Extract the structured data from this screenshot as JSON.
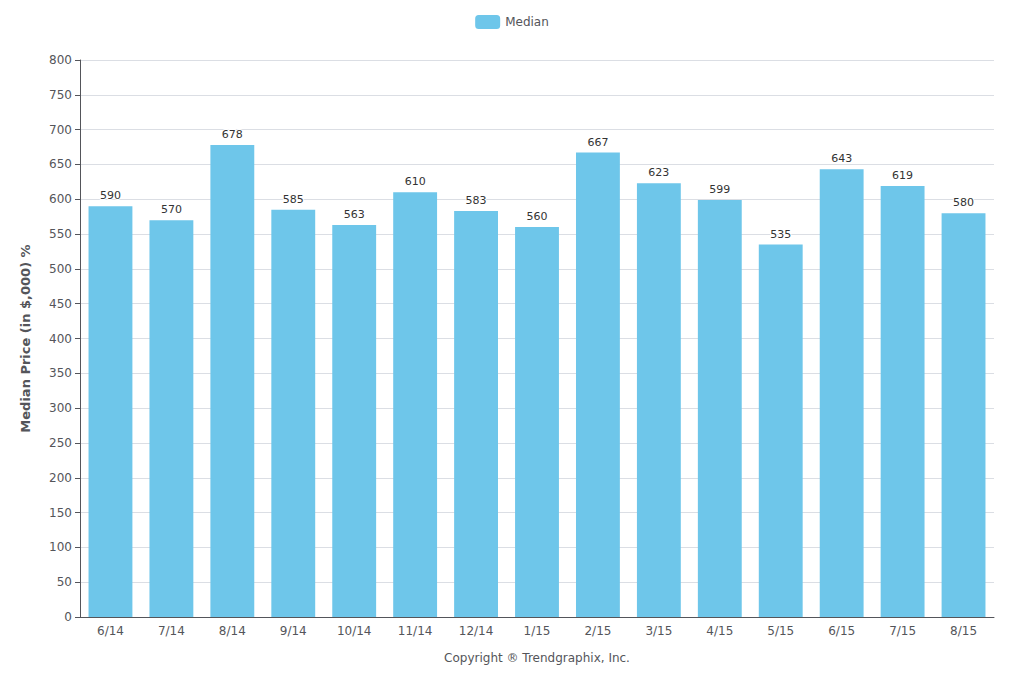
{
  "chart_data": {
    "type": "bar",
    "categories": [
      "6/14",
      "7/14",
      "8/14",
      "9/14",
      "10/14",
      "11/14",
      "12/14",
      "1/15",
      "2/15",
      "3/15",
      "4/15",
      "5/15",
      "6/15",
      "7/15",
      "8/15"
    ],
    "series": [
      {
        "name": "Median",
        "color": "#6EC6EA",
        "values": [
          590,
          570,
          678,
          585,
          563,
          610,
          583,
          560,
          667,
          623,
          599,
          535,
          643,
          619,
          580
        ]
      }
    ],
    "xlabel": "Copyright ® Trendgraphix, Inc.",
    "ylabel": "Median Price (in $,000) %",
    "ylim": [
      0,
      800
    ],
    "yticks": [
      0,
      50,
      100,
      150,
      200,
      250,
      300,
      350,
      400,
      450,
      500,
      550,
      600,
      650,
      700,
      750,
      800
    ],
    "grid": true,
    "legend": "top",
    "data_labels": true
  }
}
